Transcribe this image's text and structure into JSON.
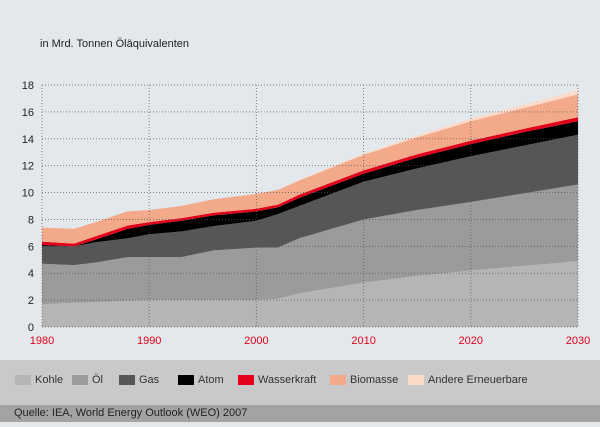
{
  "chart_data": {
    "type": "area",
    "stacked": true,
    "unit_label": "in Mrd. Tonnen Öläquivalenten",
    "x": [
      1980,
      1983,
      1985,
      1988,
      1990,
      1993,
      1996,
      2000,
      2002,
      2004,
      2010,
      2015,
      2020,
      2025,
      2030
    ],
    "xticks": [
      "1980",
      "1990",
      "2000",
      "2010",
      "2020",
      "2030"
    ],
    "yticks": [
      "0",
      "2",
      "4",
      "6",
      "8",
      "10",
      "12",
      "14",
      "16",
      "18"
    ],
    "ylim": [
      0,
      18
    ],
    "xlim": [
      1980,
      2030
    ],
    "grid": true,
    "legend_position": "bottom",
    "series": [
      {
        "name": "Kohle",
        "color": "#b5b5b5",
        "values": [
          1.7,
          1.8,
          1.85,
          1.95,
          2.0,
          2.0,
          2.0,
          2.0,
          2.1,
          2.5,
          3.3,
          3.8,
          4.2,
          4.55,
          4.9
        ]
      },
      {
        "name": "Öl",
        "color": "#9b9b9b",
        "values": [
          3.0,
          2.8,
          2.95,
          3.25,
          3.2,
          3.2,
          3.7,
          3.9,
          3.8,
          4.1,
          4.7,
          4.9,
          5.1,
          5.4,
          5.7
        ]
      },
      {
        "name": "Gas",
        "color": "#565656",
        "values": [
          1.3,
          1.4,
          1.5,
          1.4,
          1.7,
          1.9,
          1.8,
          2.0,
          2.5,
          2.4,
          2.8,
          3.1,
          3.4,
          3.55,
          3.7
        ]
      },
      {
        "name": "Atom",
        "color": "#000000",
        "values": [
          0.1,
          0.0,
          0.2,
          0.7,
          0.7,
          0.8,
          0.8,
          0.7,
          0.5,
          0.6,
          0.6,
          0.8,
          0.9,
          1.0,
          1.0
        ]
      },
      {
        "name": "Wasserkraft",
        "color": "#e2001a",
        "values": [
          0.25,
          0.2,
          0.25,
          0.25,
          0.2,
          0.2,
          0.2,
          0.2,
          0.2,
          0.25,
          0.25,
          0.25,
          0.25,
          0.25,
          0.3
        ]
      },
      {
        "name": "Biomasse",
        "color": "#f2aa8b",
        "values": [
          1.05,
          1.1,
          1.05,
          1.05,
          0.9,
          0.9,
          1.0,
          1.1,
          1.1,
          1.05,
          1.15,
          1.25,
          1.45,
          1.55,
          1.7
        ]
      },
      {
        "name": "Andere Erneuerbare",
        "color": "#fbdac9",
        "values": [
          0,
          0,
          0,
          0,
          0,
          0,
          0,
          0,
          0,
          0.05,
          0.1,
          0.15,
          0.2,
          0.25,
          0.3
        ]
      }
    ]
  },
  "source": "Quelle: IEA, World Energy Outlook (WEO) 2007"
}
